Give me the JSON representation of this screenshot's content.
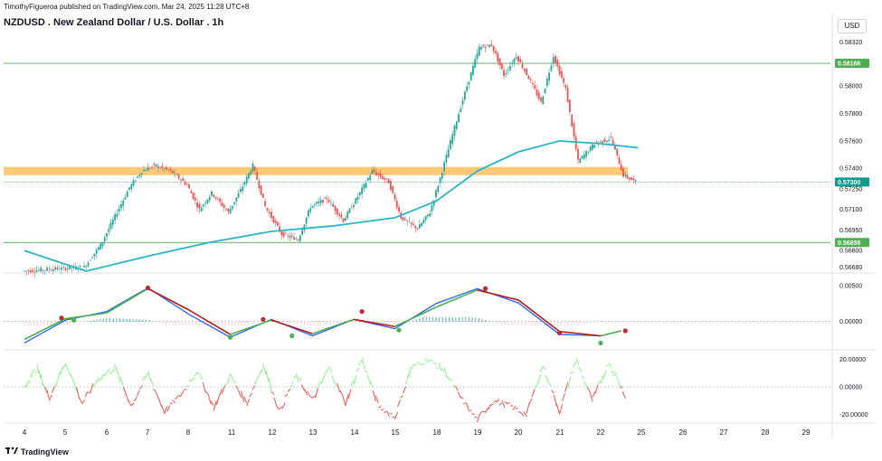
{
  "attribution": "TimothyFigueroa published on TradingView.com, Mar 24, 2025 11:28 UTC+8",
  "title": "NZDUSD . New Zealand Dollar / U.S. Dollar . 1h",
  "currency": "USD",
  "footer_logo": "TradingView",
  "colors": {
    "up": "#26a69a",
    "down": "#ef5350",
    "sma": "#26b6c8",
    "hline": "#4caf50",
    "zone": "#ffb74d",
    "macd": "#2962ff",
    "signal_up": "#4caf50",
    "signal_down": "#b71c1c",
    "osc_up": "#4caf50",
    "osc_down": "#ef5350",
    "osc_light_up": "#8bf08b"
  },
  "chart_data": [
    {
      "type": "candlestick",
      "pane": "price",
      "title": "NZDUSD . New Zealand Dollar / U.S. Dollar . 1h",
      "x_tick_labels": [
        "4",
        "5",
        "6",
        "7",
        "8",
        "11",
        "12",
        "13",
        "14",
        "15",
        "18",
        "19",
        "20",
        "21",
        "22",
        "25",
        "26",
        "27",
        "28",
        "29"
      ],
      "y_tick_labels": [
        "0.58320",
        "0.58000",
        "0.57800",
        "0.57600",
        "0.57400",
        "0.57250",
        "0.57100",
        "0.56950",
        "0.56800",
        "0.56680"
      ],
      "y_ticks": [
        0.5832,
        0.58,
        0.578,
        0.576,
        0.574,
        0.5725,
        0.571,
        0.5695,
        0.568,
        0.5668
      ],
      "ylim": [
        0.5665,
        0.5843
      ],
      "price_path": [
        [
          0,
          0.5665
        ],
        [
          1.5,
          0.5668
        ],
        [
          1.9,
          0.5684
        ],
        [
          2.3,
          0.5708
        ],
        [
          2.6,
          0.5726
        ],
        [
          2.9,
          0.5738
        ],
        [
          3.2,
          0.5742
        ],
        [
          3.6,
          0.5738
        ],
        [
          4.0,
          0.5728
        ],
        [
          4.3,
          0.571
        ],
        [
          4.6,
          0.5722
        ],
        [
          5.0,
          0.5708
        ],
        [
          5.3,
          0.5724
        ],
        [
          5.6,
          0.5742
        ],
        [
          5.9,
          0.5712
        ],
        [
          6.3,
          0.5692
        ],
        [
          6.7,
          0.5688
        ],
        [
          7.0,
          0.5712
        ],
        [
          7.4,
          0.5718
        ],
        [
          7.8,
          0.5702
        ],
        [
          8.2,
          0.5722
        ],
        [
          8.5,
          0.5738
        ],
        [
          8.9,
          0.573
        ],
        [
          9.2,
          0.5704
        ],
        [
          9.6,
          0.5696
        ],
        [
          9.9,
          0.5708
        ],
        [
          10.2,
          0.5738
        ],
        [
          10.5,
          0.577
        ],
        [
          10.8,
          0.58
        ],
        [
          11.1,
          0.5828
        ],
        [
          11.4,
          0.583
        ],
        [
          11.7,
          0.5808
        ],
        [
          12.0,
          0.5822
        ],
        [
          12.3,
          0.5806
        ],
        [
          12.6,
          0.5788
        ],
        [
          12.9,
          0.5822
        ],
        [
          13.2,
          0.5798
        ],
        [
          13.5,
          0.5745
        ],
        [
          13.9,
          0.5758
        ],
        [
          14.3,
          0.5762
        ],
        [
          14.6,
          0.5735
        ],
        [
          14.9,
          0.573
        ]
      ],
      "sma": [
        [
          0,
          0.568
        ],
        [
          1.5,
          0.5665
        ],
        [
          3.0,
          0.5676
        ],
        [
          4.5,
          0.5686
        ],
        [
          6.0,
          0.5694
        ],
        [
          7.5,
          0.5698
        ],
        [
          9.0,
          0.5704
        ],
        [
          10.0,
          0.5716
        ],
        [
          11.0,
          0.5738
        ],
        [
          12.0,
          0.5752
        ],
        [
          13.0,
          0.576
        ],
        [
          14.0,
          0.5758
        ],
        [
          14.9,
          0.5755
        ]
      ],
      "horizontal_lines": [
        {
          "value": 0.58166,
          "label": "0.58166"
        },
        {
          "value": 0.56859,
          "label": "0.56859"
        }
      ],
      "current_price": {
        "value": 0.573,
        "label": "0.57300"
      },
      "support_zone": [
        0.5735,
        0.5741
      ]
    },
    {
      "type": "line",
      "pane": "macd",
      "y_tick_labels": [
        "0.00500",
        "0.00000"
      ],
      "y_ticks": [
        0.005,
        0.0
      ],
      "ylim": [
        -0.0037,
        0.0064
      ],
      "macd": [
        [
          0,
          -0.003
        ],
        [
          1.0,
          0.0002
        ],
        [
          2.0,
          0.0014
        ],
        [
          3.0,
          0.0047
        ],
        [
          4.0,
          0.001
        ],
        [
          5.0,
          -0.0022
        ],
        [
          6.0,
          0.0003
        ],
        [
          7.0,
          -0.002
        ],
        [
          8.0,
          0.0003
        ],
        [
          9.0,
          -0.001
        ],
        [
          10.0,
          0.0025
        ],
        [
          11.0,
          0.0046
        ],
        [
          12.0,
          0.0026
        ],
        [
          13.0,
          -0.0018
        ],
        [
          14.0,
          -0.002
        ],
        [
          14.5,
          -0.0013
        ]
      ],
      "signal": [
        [
          0,
          -0.0025
        ],
        [
          1.0,
          0.0004
        ],
        [
          2.0,
          0.0012
        ],
        [
          3.0,
          0.0046
        ],
        [
          4.0,
          0.0016
        ],
        [
          5.0,
          -0.0018
        ],
        [
          6.0,
          0.0002
        ],
        [
          7.0,
          -0.0017
        ],
        [
          8.0,
          0.0003
        ],
        [
          9.0,
          -0.0007
        ],
        [
          10.0,
          0.002
        ],
        [
          11.0,
          0.0044
        ],
        [
          12.0,
          0.003
        ],
        [
          13.0,
          -0.0014
        ],
        [
          14.0,
          -0.002
        ],
        [
          14.5,
          -0.0013
        ]
      ],
      "cross_points": [
        {
          "x": 0.9,
          "y": 0.0005,
          "dir": "down"
        },
        {
          "x": 1.2,
          "y": 0.0002,
          "dir": "up"
        },
        {
          "x": 3.0,
          "y": 0.0047,
          "dir": "down"
        },
        {
          "x": 5.0,
          "y": -0.0022,
          "dir": "up"
        },
        {
          "x": 5.8,
          "y": 0.0003,
          "dir": "down"
        },
        {
          "x": 6.5,
          "y": -0.002,
          "dir": "up"
        },
        {
          "x": 8.2,
          "y": 0.0014,
          "dir": "down"
        },
        {
          "x": 9.1,
          "y": -0.0012,
          "dir": "up"
        },
        {
          "x": 11.2,
          "y": 0.0046,
          "dir": "down"
        },
        {
          "x": 13.0,
          "y": -0.0016,
          "dir": "down"
        },
        {
          "x": 14.0,
          "y": -0.003,
          "dir": "up"
        },
        {
          "x": 14.6,
          "y": -0.0013,
          "dir": "down"
        }
      ]
    },
    {
      "type": "line",
      "pane": "oscillator",
      "y_tick_labels": [
        "20.00000",
        "0.00000",
        "-20.00000"
      ],
      "y_ticks": [
        20,
        0,
        -20
      ],
      "ylim": [
        -25,
        25
      ],
      "series_points": [
        [
          0,
          0
        ],
        [
          0.3,
          14
        ],
        [
          0.6,
          -8
        ],
        [
          1.0,
          18
        ],
        [
          1.4,
          -12
        ],
        [
          1.8,
          6
        ],
        [
          2.2,
          14
        ],
        [
          2.6,
          -14
        ],
        [
          3.0,
          10
        ],
        [
          3.4,
          -18
        ],
        [
          3.8,
          -6
        ],
        [
          4.2,
          12
        ],
        [
          4.6,
          -15
        ],
        [
          5.0,
          8
        ],
        [
          5.4,
          -12
        ],
        [
          5.8,
          16
        ],
        [
          6.2,
          -18
        ],
        [
          6.6,
          8
        ],
        [
          7.0,
          -10
        ],
        [
          7.4,
          14
        ],
        [
          7.8,
          -12
        ],
        [
          8.2,
          20
        ],
        [
          8.6,
          -14
        ],
        [
          9.0,
          -22
        ],
        [
          9.4,
          14
        ],
        [
          9.8,
          20
        ],
        [
          10.2,
          12
        ],
        [
          10.6,
          -8
        ],
        [
          11.0,
          -24
        ],
        [
          11.4,
          -10
        ],
        [
          11.8,
          -14
        ],
        [
          12.2,
          -20
        ],
        [
          12.6,
          16
        ],
        [
          13.0,
          -18
        ],
        [
          13.4,
          20
        ],
        [
          13.8,
          -10
        ],
        [
          14.2,
          18
        ],
        [
          14.6,
          -6
        ]
      ]
    }
  ]
}
